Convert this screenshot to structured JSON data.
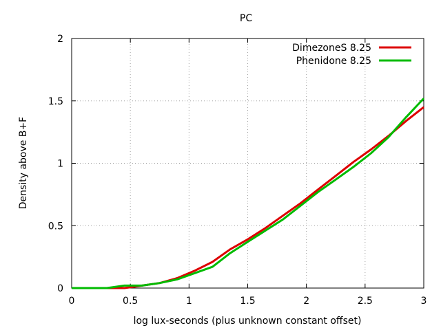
{
  "chart_data": {
    "type": "line",
    "title": "PC",
    "xlabel": "log lux-seconds (plus unknown constant offset)",
    "ylabel": "Density above B+F",
    "xlim": [
      0,
      3
    ],
    "ylim": [
      0,
      2
    ],
    "x_ticks": [
      0,
      0.5,
      1,
      1.5,
      2,
      2.5,
      3
    ],
    "x_tick_labels": [
      "0",
      "0.5",
      "1",
      "1.5",
      "2",
      "2.5",
      "3"
    ],
    "y_ticks": [
      0,
      0.5,
      1,
      1.5,
      2
    ],
    "y_tick_labels": [
      "0",
      "0.5",
      "1",
      "1.5",
      "2"
    ],
    "grid": true,
    "legend_position": "top-right",
    "series": [
      {
        "name": "DimezoneS 8.25",
        "color": "#dd0000",
        "x": [
          0,
          0.3,
          0.45,
          0.6,
          0.75,
          0.9,
          1.05,
          1.2,
          1.35,
          1.5,
          1.65,
          1.8,
          1.95,
          2.1,
          2.25,
          2.4,
          2.55,
          2.7,
          2.85,
          3.0
        ],
        "y": [
          0,
          0,
          0,
          0.02,
          0.04,
          0.08,
          0.14,
          0.21,
          0.31,
          0.39,
          0.48,
          0.58,
          0.68,
          0.79,
          0.9,
          1.01,
          1.11,
          1.22,
          1.34,
          1.45
        ]
      },
      {
        "name": "Phenidone 8.25",
        "color": "#00bb00",
        "x": [
          0,
          0.3,
          0.45,
          0.6,
          0.75,
          0.9,
          1.05,
          1.2,
          1.35,
          1.5,
          1.65,
          1.8,
          1.95,
          2.1,
          2.25,
          2.4,
          2.55,
          2.7,
          2.85,
          3.0
        ],
        "y": [
          0,
          0,
          0.02,
          0.02,
          0.04,
          0.07,
          0.12,
          0.17,
          0.28,
          0.37,
          0.46,
          0.55,
          0.66,
          0.77,
          0.87,
          0.97,
          1.08,
          1.21,
          1.37,
          1.52
        ]
      }
    ]
  }
}
